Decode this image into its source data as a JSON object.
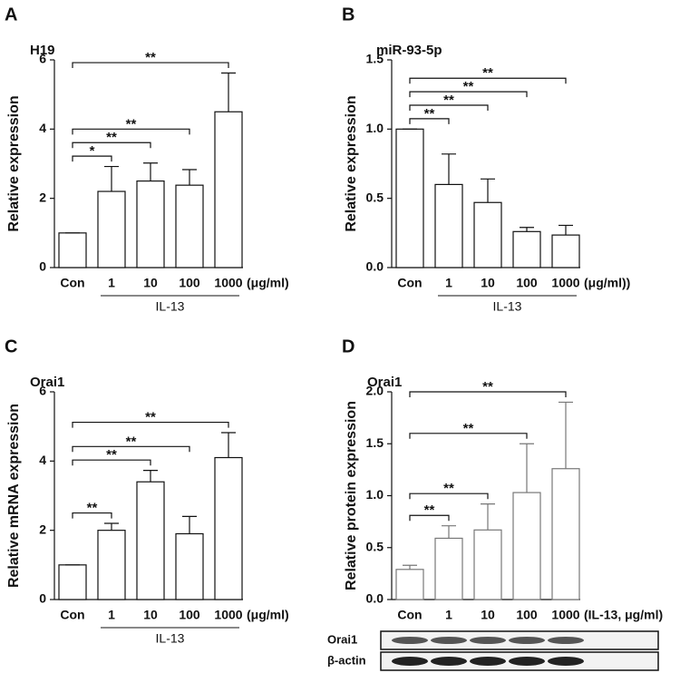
{
  "chart_data": [
    {
      "type": "bar",
      "label": "A",
      "y_label": "Relative expression",
      "categories": [
        "Con",
        "1",
        "10",
        "100",
        "1000"
      ],
      "unit": "(μg/ml)",
      "group_label": "IL-13",
      "series": [
        {
          "name": "H19",
          "color": "#ffffff",
          "values": [
            1,
            2.2,
            2.5,
            2.38,
            4.5
          ],
          "errors": [
            0,
            0.72,
            0.52,
            0.45,
            1.12
          ]
        }
      ],
      "ylim": [
        0,
        6
      ],
      "yticks": [
        0,
        2,
        4,
        6
      ],
      "brackets": [
        {
          "from": 0,
          "to": 1,
          "label": "*"
        },
        {
          "from": 0,
          "to": 2,
          "label": "**"
        },
        {
          "from": 0,
          "to": 3,
          "label": "**"
        },
        {
          "from": 0,
          "to": 4,
          "label": "**"
        }
      ]
    },
    {
      "type": "bar",
      "label": "B",
      "y_label": "Relative expression",
      "categories": [
        "Con",
        "1",
        "10",
        "100",
        "1000"
      ],
      "unit": "(μg/ml))",
      "group_label": "IL-13",
      "series": [
        {
          "name": "miR-93-5p",
          "color": "#ffffff",
          "values": [
            1,
            0.6,
            0.47,
            0.26,
            0.235
          ],
          "errors": [
            0,
            0.22,
            0.17,
            0.03,
            0.07
          ]
        }
      ],
      "ylim": [
        0,
        1.5
      ],
      "yticks": [
        {
          "value": 0,
          "label": "0.0"
        },
        {
          "value": 0.5,
          "label": "0.5"
        },
        {
          "value": 1,
          "label": "1.0"
        },
        {
          "value": 1.5,
          "label": "1.5"
        }
      ],
      "brackets": [
        {
          "from": 0,
          "to": 1,
          "label": "**"
        },
        {
          "from": 0,
          "to": 2,
          "label": "**"
        },
        {
          "from": 0,
          "to": 3,
          "label": "**"
        },
        {
          "from": 0,
          "to": 4,
          "label": "**"
        }
      ]
    },
    {
      "type": "bar",
      "label": "C",
      "y_label": "Relative mRNA expression",
      "categories": [
        "Con",
        "1",
        "10",
        "100",
        "1000"
      ],
      "unit": "(μg/ml)",
      "group_label": "IL-13",
      "series": [
        {
          "name": "Orai1",
          "color": "#ffffff",
          "values": [
            1,
            2.0,
            3.4,
            1.9,
            4.1
          ],
          "errors": [
            0,
            0.2,
            0.33,
            0.5,
            0.72
          ]
        }
      ],
      "ylim": [
        0,
        6
      ],
      "yticks": [
        0,
        2,
        4,
        6
      ],
      "brackets": [
        {
          "from": 0,
          "to": 1,
          "label": "**"
        },
        {
          "from": 0,
          "to": 2,
          "label": "**"
        },
        {
          "from": 0,
          "to": 3,
          "label": "**"
        },
        {
          "from": 0,
          "to": 4,
          "label": "**"
        }
      ]
    },
    {
      "type": "bar",
      "label": "D",
      "y_label": "Relative protein expression",
      "categories": [
        "Con",
        "1",
        "10",
        "100",
        "1000"
      ],
      "unit": "(IL-13, μg/ml)",
      "series": [
        {
          "name": "Orai1",
          "color": "#ffffff",
          "values": [
            0.29,
            0.59,
            0.67,
            1.03,
            1.26
          ],
          "errors": [
            0.04,
            0.12,
            0.25,
            0.47,
            0.64
          ]
        }
      ],
      "ylim": [
        0,
        2
      ],
      "yticks": [
        {
          "value": 0,
          "label": "0.0"
        },
        {
          "value": 0.5,
          "label": "0.5"
        },
        {
          "value": 1,
          "label": "1.0"
        },
        {
          "value": 1.5,
          "label": "1.5"
        },
        {
          "value": 2,
          "label": "2.0"
        }
      ],
      "brackets": [
        {
          "from": 0,
          "to": 1,
          "label": "**"
        },
        {
          "from": 0,
          "to": 2,
          "label": "**"
        },
        {
          "from": 0,
          "to": 3,
          "label": "**"
        },
        {
          "from": 0,
          "to": 4,
          "label": "**"
        }
      ],
      "blot_labels": [
        "Orai1",
        "β-actin"
      ]
    }
  ]
}
